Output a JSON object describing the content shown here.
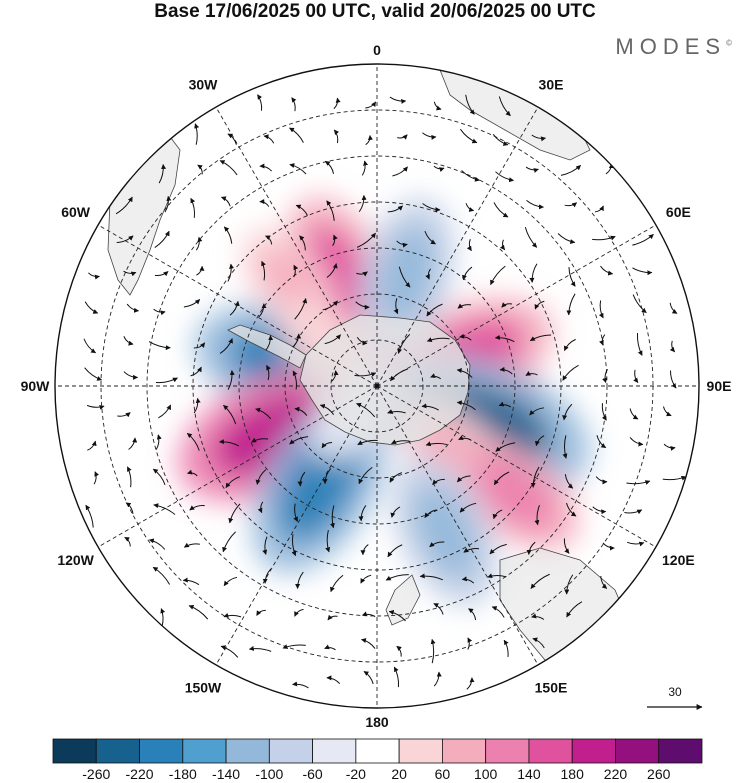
{
  "title": "Base 17/06/2025 00 UTC, valid 20/06/2025 00 UTC",
  "brand": "MODES",
  "brand_mark": "©",
  "longitude_labels": [
    {
      "text": "0",
      "lon": 0
    },
    {
      "text": "30E",
      "lon": 30
    },
    {
      "text": "60E",
      "lon": 60
    },
    {
      "text": "90E",
      "lon": 90
    },
    {
      "text": "120E",
      "lon": 120
    },
    {
      "text": "150E",
      "lon": 150
    },
    {
      "text": "180",
      "lon": 180
    },
    {
      "text": "150W",
      "lon": -150
    },
    {
      "text": "120W",
      "lon": -120
    },
    {
      "text": "90W",
      "lon": -90
    },
    {
      "text": "60W",
      "lon": -60
    },
    {
      "text": "30W",
      "lon": -30
    }
  ],
  "vector_reference": {
    "value": "30"
  },
  "colorbar": {
    "ticks": [
      "-260",
      "-220",
      "-180",
      "-140",
      "-100",
      "-60",
      "-20",
      "20",
      "60",
      "100",
      "140",
      "180",
      "220",
      "260"
    ],
    "colors": [
      "#0b3a5a",
      "#16618d",
      "#2a80b8",
      "#4f9fcf",
      "#93b8da",
      "#c5d1e8",
      "#e6e8f3",
      "#ffffff",
      "#f9d5d8",
      "#f4adbd",
      "#ec80ae",
      "#e0519e",
      "#c11f8e",
      "#94107e",
      "#5e0d6e"
    ]
  },
  "anomalies": [
    {
      "lat": -75,
      "lon": 95,
      "value": 190
    },
    {
      "lat": -68,
      "lon": 70,
      "value": 150
    },
    {
      "lat": -65,
      "lon": 110,
      "value": -240
    },
    {
      "lat": -68,
      "lon": 130,
      "value": 80
    },
    {
      "lat": -52,
      "lon": 128,
      "value": 110
    },
    {
      "lat": -55,
      "lon": 155,
      "value": -130
    },
    {
      "lat": -70,
      "lon": -75,
      "value": -190
    },
    {
      "lat": -65,
      "lon": -115,
      "value": 210
    },
    {
      "lat": -65,
      "lon": -150,
      "value": -190
    },
    {
      "lat": -65,
      "lon": -20,
      "value": 150
    },
    {
      "lat": -65,
      "lon": 15,
      "value": -130
    },
    {
      "lat": -60,
      "lon": -40,
      "value": 60
    },
    {
      "lat": -75,
      "lon": -50,
      "value": 40
    },
    {
      "lat": -82,
      "lon": -140,
      "value": -40
    }
  ]
}
